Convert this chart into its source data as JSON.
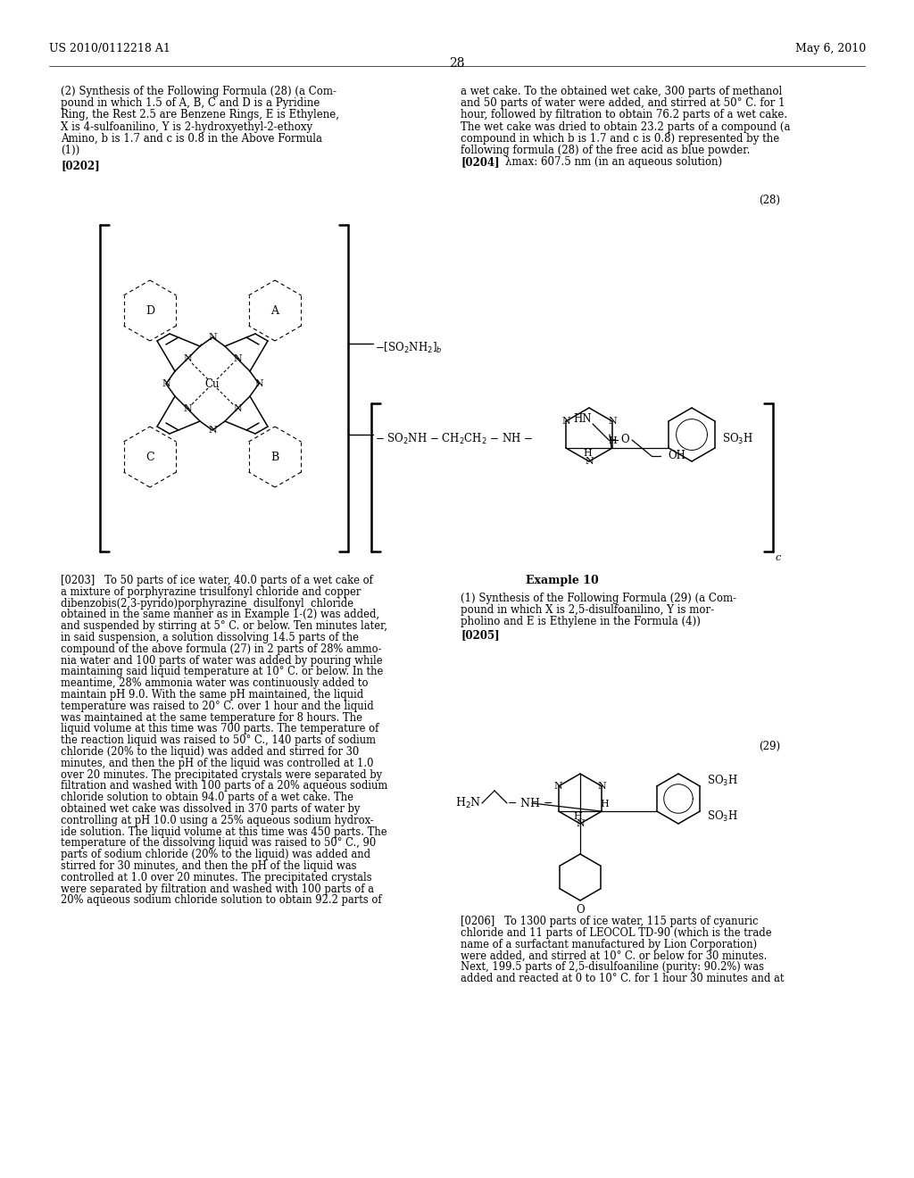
{
  "background_color": "#ffffff",
  "header_left": "US 2010/0112218 A1",
  "header_right": "May 6, 2010",
  "page_number": "28",
  "left_col_lines": [
    "(2) Synthesis of the Following Formula (28) (a Com-",
    "pound in which 1.5 of A, B, C and D is a Pyridine",
    "Ring, the Rest 2.5 are Benzene Rings, E is Ethylene,",
    "X is 4-sulfoanilino, Y is 2-hydroxyethyl-2-ethoxy",
    "Amino, b is 1.7 and c is 0.8 in the Above Formula",
    "(1))"
  ],
  "right_col_lines": [
    "a wet cake. To the obtained wet cake, 300 parts of methanol",
    "and 50 parts of water were added, and stirred at 50° C. for 1",
    "hour, followed by filtration to obtain 76.2 parts of a wet cake.",
    "The wet cake was dried to obtain 23.2 parts of a compound (a",
    "compound in which b is 1.7 and c is 0.8) represented by the",
    "following formula (28) of the free acid as blue powder."
  ],
  "para0202": "[0202]",
  "para0204_label": "[0204]",
  "para0204_text": "λmax: 607.5 nm (in an aqueous solution)",
  "formula28_label": "(28)",
  "bottom_left": [
    "[0203]   To 50 parts of ice water, 40.0 parts of a wet cake of",
    "a mixture of porphyrazine trisulfonyl chloride and copper",
    "dibenzobis(2,3-pyrido)porphyrazine  disulfonyl  chloride",
    "obtained in the same manner as in Example 1-(2) was added,",
    "and suspended by stirring at 5° C. or below. Ten minutes later,",
    "in said suspension, a solution dissolving 14.5 parts of the",
    "compound of the above formula (27) in 2 parts of 28% ammo-",
    "nia water and 100 parts of water was added by pouring while",
    "maintaining said liquid temperature at 10° C. or below. In the",
    "meantime, 28% ammonia water was continuously added to",
    "maintain pH 9.0. With the same pH maintained, the liquid",
    "temperature was raised to 20° C. over 1 hour and the liquid",
    "was maintained at the same temperature for 8 hours. The",
    "liquid volume at this time was 700 parts. The temperature of",
    "the reaction liquid was raised to 50° C., 140 parts of sodium",
    "chloride (20% to the liquid) was added and stirred for 30",
    "minutes, and then the pH of the liquid was controlled at 1.0",
    "over 20 minutes. The precipitated crystals were separated by",
    "filtration and washed with 100 parts of a 20% aqueous sodium",
    "chloride solution to obtain 94.0 parts of a wet cake. The",
    "obtained wet cake was dissolved in 370 parts of water by",
    "controlling at pH 10.0 using a 25% aqueous sodium hydrox-",
    "ide solution. The liquid volume at this time was 450 parts. The",
    "temperature of the dissolving liquid was raised to 50° C., 90",
    "parts of sodium chloride (20% to the liquid) was added and",
    "stirred for 30 minutes, and then the pH of the liquid was",
    "controlled at 1.0 over 20 minutes. The precipitated crystals",
    "were separated by filtration and washed with 100 parts of a",
    "20% aqueous sodium chloride solution to obtain 92.2 parts of"
  ],
  "example10_title": "Example 10",
  "example10_lines": [
    "(1) Synthesis of the Following Formula (29) (a Com-",
    "pound in which X is 2,5-disulfoanilino, Y is mor-",
    "pholino and E is Ethylene in the Formula (4))"
  ],
  "para0205": "[0205]",
  "formula29_label": "(29)",
  "bottom_right": [
    "[0206]   To 1300 parts of ice water, 115 parts of cyanuric",
    "chloride and 11 parts of LEOCOL TD-90 (which is the trade",
    "name of a surfactant manufactured by Lion Corporation)",
    "were added, and stirred at 10° C. or below for 30 minutes.",
    "Next, 199.5 parts of 2,5-disulfoaniline (purity: 90.2%) was",
    "added and reacted at 0 to 10° C. for 1 hour 30 minutes and at"
  ]
}
